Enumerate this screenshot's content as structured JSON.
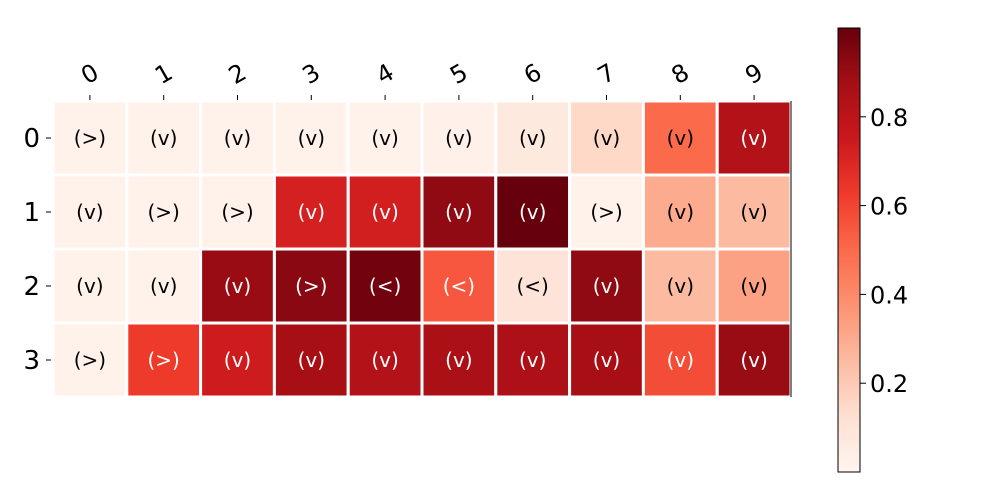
{
  "chart_data": {
    "type": "heatmap",
    "x_labels": [
      "0",
      "1",
      "2",
      "3",
      "4",
      "5",
      "6",
      "7",
      "8",
      "9"
    ],
    "y_labels": [
      "0",
      "1",
      "2",
      "3"
    ],
    "values": [
      [
        0.02,
        0.02,
        0.02,
        0.02,
        0.02,
        0.03,
        0.07,
        0.15,
        0.5,
        0.83
      ],
      [
        0.02,
        0.02,
        0.02,
        0.72,
        0.73,
        0.92,
        1.0,
        0.02,
        0.3,
        0.25
      ],
      [
        0.02,
        0.02,
        0.9,
        0.93,
        0.98,
        0.55,
        0.1,
        0.92,
        0.25,
        0.33
      ],
      [
        0.02,
        0.63,
        0.74,
        0.87,
        0.83,
        0.86,
        0.85,
        0.87,
        0.58,
        0.9
      ]
    ],
    "annotations": [
      [
        "(>)",
        "(v)",
        "(v)",
        "(v)",
        "(v)",
        "(v)",
        "(v)",
        "(v)",
        "(v)",
        "(v)"
      ],
      [
        "(v)",
        "(>)",
        "(>)",
        "(v)",
        "(v)",
        "(v)",
        "(v)",
        "(>)",
        "(v)",
        "(v)"
      ],
      [
        "(v)",
        "(v)",
        "(v)",
        "(>)",
        "(<)",
        "(<)",
        "(<)",
        "(v)",
        "(v)",
        "(v)"
      ],
      [
        "(>)",
        "(>)",
        "(v)",
        "(v)",
        "(v)",
        "(v)",
        "(v)",
        "(v)",
        "(v)",
        "(v)"
      ]
    ],
    "colormap": "Reds",
    "colorbar": {
      "min": 0.0,
      "max": 1.0,
      "ticks": [
        0.2,
        0.4,
        0.6,
        0.8
      ],
      "tick_labels": [
        "0.2",
        "0.4",
        "0.6",
        "0.8"
      ]
    },
    "x_axis_position": "top",
    "grid": false
  }
}
